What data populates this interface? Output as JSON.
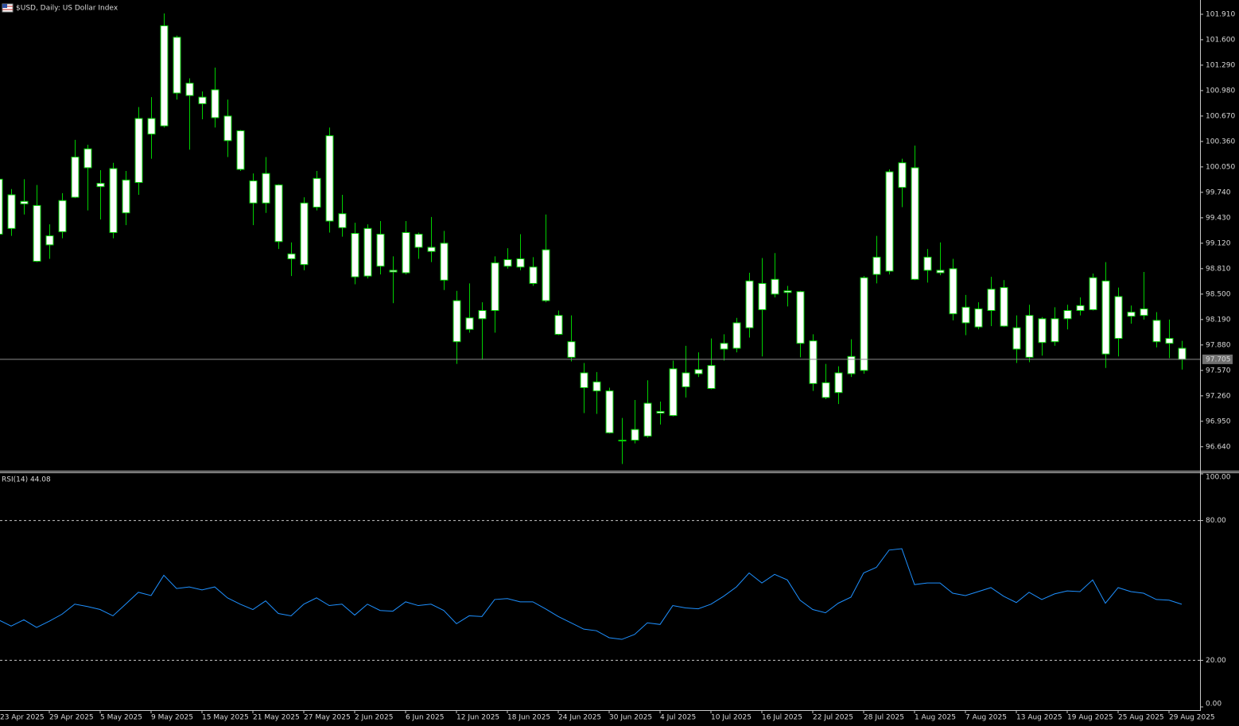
{
  "chart_data": [
    {
      "type": "candlestick",
      "title": "$USD, Daily:  US Dollar Index",
      "color": "#00d000",
      "body_color": "#ffffff",
      "ylim": [
        96.357,
        102.084
      ],
      "yticks": [
        {
          "value": 101.91,
          "label": "101.910"
        },
        {
          "value": 101.6,
          "label": "101.600"
        },
        {
          "value": 101.29,
          "label": "101.290"
        },
        {
          "value": 100.98,
          "label": "100.980"
        },
        {
          "value": 100.67,
          "label": "100.670"
        },
        {
          "value": 100.36,
          "label": "100.360"
        },
        {
          "value": 100.05,
          "label": "100.050"
        },
        {
          "value": 99.74,
          "label": "99.740"
        },
        {
          "value": 99.43,
          "label": "99.430"
        },
        {
          "value": 99.12,
          "label": "99.120"
        },
        {
          "value": 98.81,
          "label": "98.810"
        },
        {
          "value": 98.5,
          "label": "98.500"
        },
        {
          "value": 98.19,
          "label": "98.190"
        },
        {
          "value": 97.88,
          "label": "97.880"
        },
        {
          "value": 97.57,
          "label": "97.570"
        },
        {
          "value": 97.26,
          "label": "97.260"
        },
        {
          "value": 96.95,
          "label": "96.950"
        },
        {
          "value": 96.64,
          "label": "96.640"
        }
      ],
      "last_price": {
        "value": 97.705,
        "label": "97.705"
      },
      "ohlc": [
        [
          99.9,
          100.05,
          99.18,
          99.23
        ],
        [
          99.3,
          99.78,
          99.21,
          99.71
        ],
        [
          99.63,
          99.9,
          99.47,
          99.6
        ],
        [
          99.58,
          99.83,
          98.89,
          98.9
        ],
        [
          99.1,
          99.35,
          98.93,
          99.21
        ],
        [
          99.26,
          99.73,
          99.18,
          99.64
        ],
        [
          99.68,
          100.38,
          99.67,
          100.17
        ],
        [
          100.27,
          100.32,
          99.52,
          100.04
        ],
        [
          99.85,
          100.01,
          99.41,
          99.81
        ],
        [
          100.03,
          100.1,
          99.18,
          99.25
        ],
        [
          99.49,
          100.0,
          99.34,
          99.89
        ],
        [
          99.86,
          100.78,
          99.71,
          100.64
        ],
        [
          100.45,
          100.9,
          100.15,
          100.64
        ],
        [
          100.55,
          101.92,
          100.53,
          101.77
        ],
        [
          101.63,
          101.65,
          100.87,
          100.95
        ],
        [
          101.07,
          101.13,
          100.26,
          100.92
        ],
        [
          100.82,
          100.97,
          100.63,
          100.9
        ],
        [
          100.99,
          101.26,
          100.53,
          100.65
        ],
        [
          100.67,
          100.87,
          100.17,
          100.37
        ],
        [
          100.49,
          100.5,
          100.0,
          100.02
        ],
        [
          99.88,
          99.97,
          99.34,
          99.61
        ],
        [
          99.61,
          100.17,
          99.49,
          99.97
        ],
        [
          99.83,
          99.84,
          99.05,
          99.14
        ],
        [
          98.93,
          99.13,
          98.72,
          98.99
        ],
        [
          98.86,
          99.68,
          98.79,
          99.61
        ],
        [
          99.56,
          100.0,
          99.52,
          99.91
        ],
        [
          100.43,
          100.53,
          99.25,
          99.39
        ],
        [
          99.48,
          99.71,
          99.2,
          99.31
        ],
        [
          99.24,
          99.37,
          98.62,
          98.71
        ],
        [
          98.72,
          99.35,
          98.69,
          99.3
        ],
        [
          99.23,
          99.39,
          98.74,
          98.84
        ],
        [
          98.79,
          98.96,
          98.39,
          98.77
        ],
        [
          98.76,
          99.39,
          98.74,
          99.25
        ],
        [
          99.23,
          99.25,
          98.93,
          99.07
        ],
        [
          99.02,
          99.44,
          98.89,
          99.07
        ],
        [
          99.12,
          99.27,
          98.55,
          98.67
        ],
        [
          98.42,
          98.54,
          97.65,
          97.92
        ],
        [
          98.07,
          98.63,
          98.03,
          98.21
        ],
        [
          98.2,
          98.4,
          97.7,
          98.3
        ],
        [
          98.3,
          98.96,
          98.03,
          98.88
        ],
        [
          98.84,
          99.06,
          98.81,
          98.92
        ],
        [
          98.93,
          99.23,
          98.79,
          98.83
        ],
        [
          98.83,
          98.95,
          98.6,
          98.63
        ],
        [
          98.42,
          99.47,
          98.4,
          99.04
        ],
        [
          98.24,
          98.3,
          98.0,
          98.01
        ],
        [
          97.92,
          98.24,
          97.68,
          97.73
        ],
        [
          97.54,
          97.66,
          97.05,
          97.36
        ],
        [
          97.43,
          97.55,
          97.04,
          97.32
        ],
        [
          97.32,
          97.36,
          96.8,
          96.81
        ],
        [
          96.71,
          96.99,
          96.43,
          96.72
        ],
        [
          96.72,
          97.21,
          96.68,
          96.85
        ],
        [
          96.77,
          97.45,
          96.75,
          97.17
        ],
        [
          97.05,
          97.19,
          96.91,
          97.07
        ],
        [
          97.02,
          97.69,
          97.01,
          97.59
        ],
        [
          97.37,
          97.87,
          97.24,
          97.54
        ],
        [
          97.53,
          97.79,
          97.49,
          97.58
        ],
        [
          97.35,
          97.96,
          97.34,
          97.63
        ],
        [
          97.83,
          98.01,
          97.69,
          97.9
        ],
        [
          97.84,
          98.21,
          97.79,
          98.15
        ],
        [
          98.09,
          98.76,
          97.97,
          98.66
        ],
        [
          98.63,
          98.94,
          97.74,
          98.31
        ],
        [
          98.5,
          99.0,
          98.46,
          98.68
        ],
        [
          98.54,
          98.6,
          98.35,
          98.52
        ],
        [
          98.53,
          98.54,
          97.73,
          97.9
        ],
        [
          97.93,
          98.01,
          97.32,
          97.41
        ],
        [
          97.42,
          97.65,
          97.22,
          97.24
        ],
        [
          97.3,
          97.62,
          97.16,
          97.54
        ],
        [
          97.53,
          97.95,
          97.49,
          97.74
        ],
        [
          97.57,
          98.72,
          97.53,
          98.7
        ],
        [
          98.74,
          99.21,
          98.63,
          98.95
        ],
        [
          98.78,
          100.02,
          98.74,
          99.99
        ],
        [
          99.8,
          100.15,
          99.56,
          100.1
        ],
        [
          100.04,
          100.31,
          98.67,
          98.68
        ],
        [
          98.95,
          99.05,
          98.64,
          98.79
        ],
        [
          98.76,
          99.13,
          98.73,
          98.79
        ],
        [
          98.81,
          98.93,
          98.18,
          98.26
        ],
        [
          98.34,
          98.49,
          98.0,
          98.15
        ],
        [
          98.1,
          98.4,
          98.07,
          98.32
        ],
        [
          98.3,
          98.71,
          98.11,
          98.56
        ],
        [
          98.58,
          98.67,
          98.1,
          98.11
        ],
        [
          98.09,
          98.24,
          97.66,
          97.83
        ],
        [
          97.73,
          98.37,
          97.67,
          98.24
        ],
        [
          98.2,
          98.22,
          97.75,
          97.91
        ],
        [
          97.92,
          98.34,
          97.87,
          98.2
        ],
        [
          98.2,
          98.37,
          98.07,
          98.3
        ],
        [
          98.3,
          98.46,
          98.24,
          98.36
        ],
        [
          98.31,
          98.75,
          98.3,
          98.7
        ],
        [
          98.66,
          98.89,
          97.6,
          97.77
        ],
        [
          97.96,
          98.58,
          97.74,
          98.47
        ],
        [
          98.28,
          98.36,
          98.14,
          98.23
        ],
        [
          98.24,
          98.77,
          98.19,
          98.32
        ],
        [
          98.18,
          98.28,
          97.85,
          97.92
        ],
        [
          97.96,
          98.19,
          97.72,
          97.9
        ],
        [
          97.84,
          97.93,
          97.58,
          97.705
        ]
      ]
    },
    {
      "type": "line",
      "title": "RSI(14) 44.08",
      "color": "#1e90ff",
      "ylim": [
        0,
        100
      ],
      "yticks": [
        {
          "value": 100,
          "label": "100.00"
        },
        {
          "value": 80,
          "label": "80.00"
        },
        {
          "value": 20,
          "label": "20.00"
        },
        {
          "value": 0,
          "label": "0.00"
        }
      ],
      "categories": [
        "23 Apr 2025",
        null,
        null,
        null,
        "29 Apr 2025",
        null,
        null,
        null,
        "5 May 2025",
        null,
        null,
        null,
        "9 May 2025",
        null,
        null,
        null,
        "15 May 2025",
        null,
        null,
        null,
        "21 May 2025",
        null,
        null,
        null,
        "27 May 2025",
        null,
        null,
        null,
        "2 Jun 2025",
        null,
        null,
        null,
        "6 Jun 2025",
        null,
        null,
        null,
        "12 Jun 2025",
        null,
        null,
        null,
        "18 Jun 2025",
        null,
        null,
        null,
        "24 Jun 2025",
        null,
        null,
        null,
        "30 Jun 2025",
        null,
        null,
        null,
        "4 Jul 2025",
        null,
        null,
        null,
        "10 Jul 2025",
        null,
        null,
        null,
        "16 Jul 2025",
        null,
        null,
        null,
        "22 Jul 2025",
        null,
        null,
        null,
        "28 Jul 2025",
        null,
        null,
        null,
        "1 Aug 2025",
        null,
        null,
        null,
        "7 Aug 2025",
        null,
        null,
        null,
        "13 Aug 2025",
        null,
        null,
        null,
        "19 Aug 2025",
        null,
        null,
        null,
        "25 Aug 2025",
        null,
        null,
        null,
        "29 Aug 2025",
        null
      ],
      "values": [
        37.4,
        34.7,
        37.4,
        34.1,
        36.8,
        39.8,
        44.1,
        43.1,
        41.8,
        39.1,
        44.1,
        49.2,
        47.8,
        56.5,
        50.8,
        51.5,
        50.2,
        51.5,
        46.8,
        44.1,
        41.8,
        45.5,
        40.1,
        39.1,
        44.1,
        46.8,
        43.5,
        44.1,
        39.4,
        44.1,
        41.4,
        41.1,
        45.1,
        43.5,
        44.1,
        41.4,
        35.7,
        39.1,
        38.8,
        46.1,
        46.5,
        45.1,
        45.1,
        42.1,
        38.8,
        36.1,
        33.4,
        32.7,
        29.7,
        29.0,
        31.1,
        36.1,
        35.4,
        43.5,
        42.5,
        42.1,
        44.1,
        47.5,
        51.5,
        57.5,
        53.2,
        56.9,
        54.5,
        45.8,
        41.8,
        40.4,
        44.5,
        47.1,
        57.5,
        59.9,
        67.3,
        67.9,
        52.5,
        53.2,
        53.2,
        48.8,
        47.8,
        49.5,
        51.2,
        47.5,
        44.8,
        49.2,
        46.1,
        48.5,
        49.8,
        49.5,
        54.5,
        44.5,
        51.2,
        49.5,
        48.8,
        46.1,
        45.8,
        44.08
      ]
    }
  ]
}
